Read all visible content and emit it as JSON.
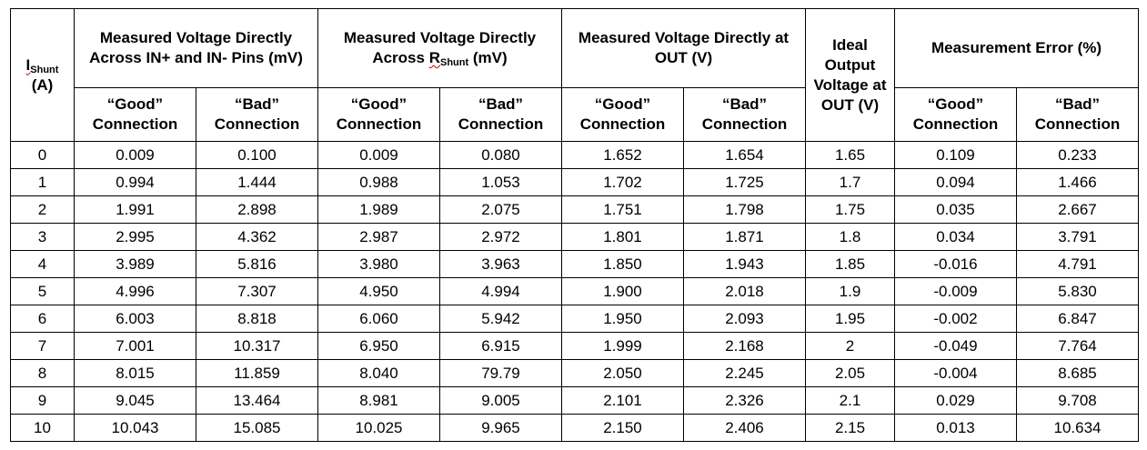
{
  "header": {
    "ishunt_main": "I",
    "ishunt_sub": "Shunt",
    "ishunt_unit": "(A)",
    "col_in_pins": "Measured Voltage Directly Across IN+ and IN- Pins (mV)",
    "col_rshunt_pre": "Measured Voltage Directly Across ",
    "col_rshunt_r": "R",
    "col_rshunt_sub": "Shunt",
    "col_rshunt_post": " (mV)",
    "col_out": "Measured Voltage Directly at OUT (V)",
    "col_ideal": "Ideal Output Voltage at OUT (V)",
    "col_error": "Measurement Error (%)",
    "good_line1": "“Good”",
    "bad_line1": "“Bad”",
    "line2": "Connection"
  },
  "rows": [
    [
      "0",
      "0.009",
      "0.100",
      "0.009",
      "0.080",
      "1.652",
      "1.654",
      "1.65",
      "0.109",
      "0.233"
    ],
    [
      "1",
      "0.994",
      "1.444",
      "0.988",
      "1.053",
      "1.702",
      "1.725",
      "1.7",
      "0.094",
      "1.466"
    ],
    [
      "2",
      "1.991",
      "2.898",
      "1.989",
      "2.075",
      "1.751",
      "1.798",
      "1.75",
      "0.035",
      "2.667"
    ],
    [
      "3",
      "2.995",
      "4.362",
      "2.987",
      "2.972",
      "1.801",
      "1.871",
      "1.8",
      "0.034",
      "3.791"
    ],
    [
      "4",
      "3.989",
      "5.816",
      "3.980",
      "3.963",
      "1.850",
      "1.943",
      "1.85",
      "-0.016",
      "4.791"
    ],
    [
      "5",
      "4.996",
      "7.307",
      "4.950",
      "4.994",
      "1.900",
      "2.018",
      "1.9",
      "-0.009",
      "5.830"
    ],
    [
      "6",
      "6.003",
      "8.818",
      "6.060",
      "5.942",
      "1.950",
      "2.093",
      "1.95",
      "-0.002",
      "6.847"
    ],
    [
      "7",
      "7.001",
      "10.317",
      "6.950",
      "6.915",
      "1.999",
      "2.168",
      "2",
      "-0.049",
      "7.764"
    ],
    [
      "8",
      "8.015",
      "11.859",
      "8.040",
      "79.79",
      "2.050",
      "2.245",
      "2.05",
      "-0.004",
      "8.685"
    ],
    [
      "9",
      "9.045",
      "13.464",
      "8.981",
      "9.005",
      "2.101",
      "2.326",
      "2.1",
      "0.029",
      "9.708"
    ],
    [
      "10",
      "10.043",
      "15.085",
      "10.025",
      "9.965",
      "2.150",
      "2.406",
      "2.15",
      "0.013",
      "10.634"
    ]
  ]
}
